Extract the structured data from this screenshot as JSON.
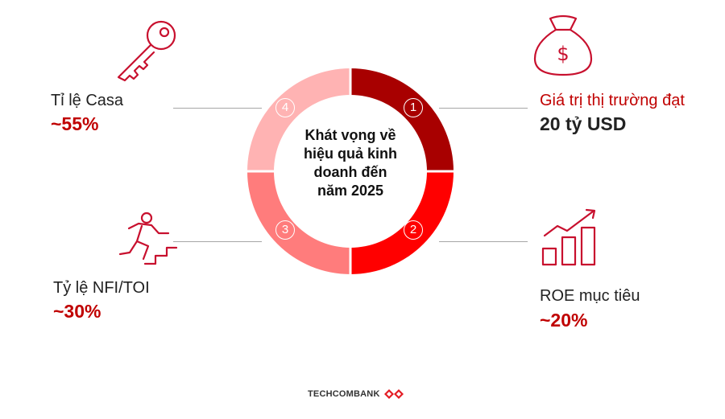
{
  "center": {
    "lines": [
      "Khát vọng về",
      "hiệu quả kinh",
      "doanh đến",
      "năm 2025"
    ]
  },
  "segments": [
    {
      "number": "1",
      "color": "#a80000"
    },
    {
      "number": "2",
      "color": "#ff0000"
    },
    {
      "number": "3",
      "color": "#ff7c7c"
    },
    {
      "number": "4",
      "color": "#ffb3b3"
    }
  ],
  "items": {
    "top_left": {
      "label": "Tỉ lệ Casa",
      "value": "~55%",
      "icon": "key-icon"
    },
    "bottom_left": {
      "label": "Tỷ lệ NFI/TOI",
      "value": "~30%",
      "icon": "running-person-icon"
    },
    "top_right": {
      "label": "Giá trị thị trường đạt",
      "value": "20 tỷ USD",
      "icon": "money-bag-icon"
    },
    "bottom_right": {
      "label": "ROE mục tiêu",
      "value": "~20%",
      "icon": "growth-chart-icon"
    }
  },
  "footer": {
    "brand": "TECHCOMBANK",
    "icon": "techcombank-logo-icon"
  },
  "colors": {
    "accent": "#c00000",
    "icon_stroke": "#c8102e",
    "line": "#a6a6a6"
  }
}
